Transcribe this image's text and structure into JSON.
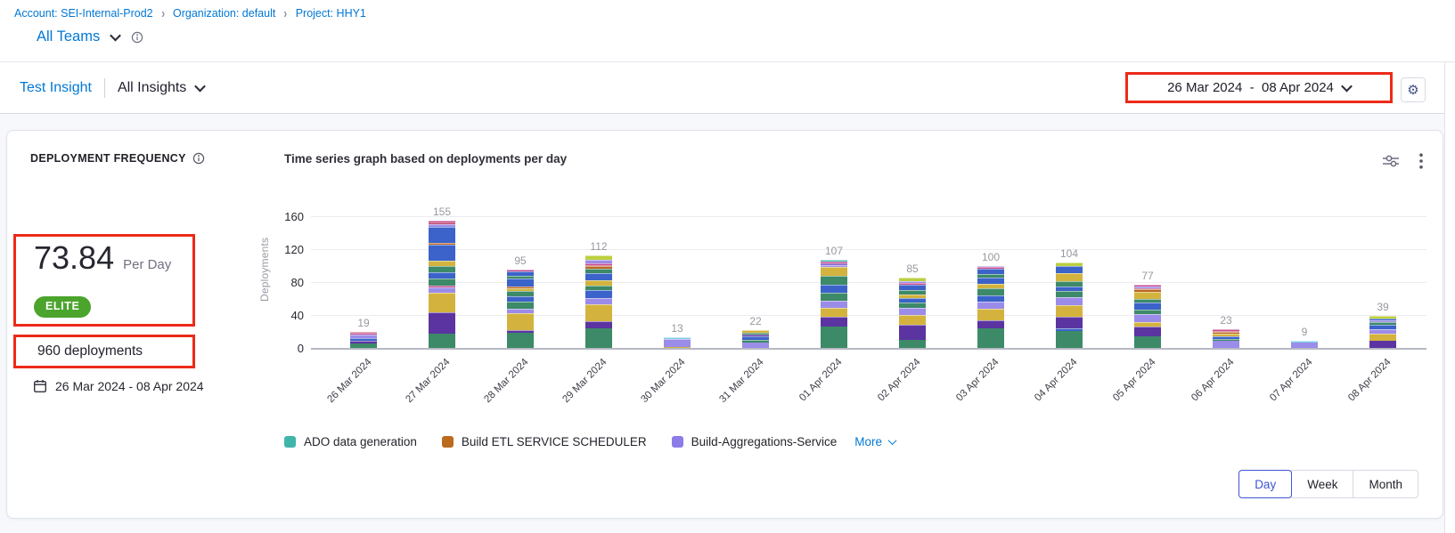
{
  "colors": {
    "accent": "#0278d5",
    "elite_green": "#4ba42c",
    "annotation_red": "#ec2a18",
    "day_selected": "#3d56d5"
  },
  "breadcrumb": {
    "items": [
      "Account: SEI-Internal-Prod2",
      "Organization: default",
      "Project: HHY1"
    ]
  },
  "team_selector": {
    "label": "All Teams"
  },
  "insight_header": {
    "insight_name": "Test Insight",
    "scope_label": "All Insights"
  },
  "date_range_picker": {
    "label": "26 Mar 2024  -  08 Apr 2024"
  },
  "widget": {
    "title": "DEPLOYMENT FREQUENCY",
    "chart_title": "Time series graph based on deployments per day",
    "metric_value": "73.84",
    "metric_unit": "Per Day",
    "badge": "ELITE",
    "total_label": "960 deployments",
    "date_range": "26 Mar 2024 - 08 Apr 2024",
    "granularity": {
      "options": [
        "Day",
        "Week",
        "Month"
      ],
      "selected": "Day"
    }
  },
  "chart_data": {
    "type": "bar",
    "stacked": true,
    "title": "Time series graph based on deployments per day",
    "xlabel": "",
    "ylabel": "Deployments",
    "ylim": [
      0,
      160
    ],
    "yticks": [
      0,
      40,
      80,
      120,
      160
    ],
    "grid": true,
    "legend_position": "bottom",
    "categories": [
      "26 Mar 2024",
      "27 Mar 2024",
      "28 Mar 2024",
      "29 Mar 2024",
      "30 Mar 2024",
      "31 Mar 2024",
      "01 Apr 2024",
      "02 Apr 2024",
      "03 Apr 2024",
      "04 Apr 2024",
      "05 Apr 2024",
      "06 Apr 2024",
      "07 Apr 2024",
      "08 Apr 2024"
    ],
    "totals": [
      19,
      155,
      95,
      112,
      13,
      22,
      107,
      85,
      100,
      104,
      77,
      23,
      9,
      39
    ],
    "legend": [
      {
        "label": "ADO data generation",
        "color": "#3fb5ab"
      },
      {
        "label": "Build ETL SERVICE SCHEDULER",
        "color": "#bc6a1e"
      },
      {
        "label": "Build-Aggregations-Service",
        "color": "#8b7ce8"
      }
    ],
    "more_label": "More",
    "palette": {
      "green": "#3d8a68",
      "darkpurple": "#5b34a1",
      "gold": "#d3b33e",
      "lavender": "#9c8ce9",
      "blue": "#3b63c9",
      "orange": "#bd6524",
      "pink": "#c4488f",
      "crimson": "#bd3f5e",
      "teal": "#49b8ae",
      "lightblue": "#7fd0e8",
      "yellowgreen": "#bccf3f",
      "medpurple": "#7e5bd1"
    },
    "bars": [
      {
        "date": "26 Mar 2024",
        "total": 19,
        "segments": [
          [
            "green",
            5
          ],
          [
            "darkpurple",
            4
          ],
          [
            "blue",
            3
          ],
          [
            "lavender",
            4
          ],
          [
            "pink",
            2
          ],
          [
            "crimson",
            1
          ]
        ]
      },
      {
        "date": "27 Mar 2024",
        "total": 155,
        "segments": [
          [
            "green",
            17
          ],
          [
            "darkpurple",
            26
          ],
          [
            "gold",
            24
          ],
          [
            "lavender",
            7
          ],
          [
            "pink",
            2
          ],
          [
            "green",
            8
          ],
          [
            "blue",
            8
          ],
          [
            "green",
            7
          ],
          [
            "gold",
            7
          ],
          [
            "blue",
            19
          ],
          [
            "orange",
            3
          ],
          [
            "blue",
            19
          ],
          [
            "lavender",
            3
          ],
          [
            "crimson",
            3
          ],
          [
            "pink",
            2
          ]
        ]
      },
      {
        "date": "28 Mar 2024",
        "total": 95,
        "segments": [
          [
            "green",
            18
          ],
          [
            "darkpurple",
            4
          ],
          [
            "gold",
            20
          ],
          [
            "lavender",
            6
          ],
          [
            "green",
            8
          ],
          [
            "blue",
            7
          ],
          [
            "green",
            6
          ],
          [
            "gold",
            4
          ],
          [
            "orange",
            2
          ],
          [
            "blue",
            9
          ],
          [
            "green",
            4
          ],
          [
            "blue",
            5
          ],
          [
            "pink",
            2
          ]
        ]
      },
      {
        "date": "29 Mar 2024",
        "total": 112,
        "segments": [
          [
            "green",
            24
          ],
          [
            "darkpurple",
            8
          ],
          [
            "gold",
            21
          ],
          [
            "lavender",
            8
          ],
          [
            "blue",
            9
          ],
          [
            "green",
            6
          ],
          [
            "gold",
            6
          ],
          [
            "blue",
            9
          ],
          [
            "green",
            5
          ],
          [
            "orange",
            3
          ],
          [
            "crimson",
            2
          ],
          [
            "pink",
            2
          ],
          [
            "lavender",
            4
          ],
          [
            "yellowgreen",
            5
          ]
        ]
      },
      {
        "date": "30 Mar 2024",
        "total": 13,
        "segments": [
          [
            "gold",
            1
          ],
          [
            "lavender",
            10
          ],
          [
            "lightblue",
            2
          ]
        ]
      },
      {
        "date": "31 Mar 2024",
        "total": 22,
        "segments": [
          [
            "lavender",
            7
          ],
          [
            "green",
            3
          ],
          [
            "blue",
            4
          ],
          [
            "darkpurple",
            2
          ],
          [
            "green",
            2
          ],
          [
            "gold",
            4
          ]
        ]
      },
      {
        "date": "01 Apr 2024",
        "total": 107,
        "segments": [
          [
            "green",
            26
          ],
          [
            "darkpurple",
            12
          ],
          [
            "gold",
            11
          ],
          [
            "lavender",
            8
          ],
          [
            "green",
            10
          ],
          [
            "blue",
            10
          ],
          [
            "green",
            11
          ],
          [
            "gold",
            10
          ],
          [
            "lavender",
            3
          ],
          [
            "medpurple",
            2
          ],
          [
            "pink",
            2
          ],
          [
            "teal",
            2
          ]
        ]
      },
      {
        "date": "02 Apr 2024",
        "total": 85,
        "segments": [
          [
            "green",
            10
          ],
          [
            "darkpurple",
            18
          ],
          [
            "gold",
            12
          ],
          [
            "lavender",
            9
          ],
          [
            "green",
            6
          ],
          [
            "blue",
            6
          ],
          [
            "gold",
            4
          ],
          [
            "green",
            5
          ],
          [
            "blue",
            7
          ],
          [
            "pink",
            2
          ],
          [
            "lavender",
            2
          ],
          [
            "yellowgreen",
            4
          ]
        ]
      },
      {
        "date": "03 Apr 2024",
        "total": 100,
        "segments": [
          [
            "green",
            24
          ],
          [
            "darkpurple",
            10
          ],
          [
            "gold",
            14
          ],
          [
            "lavender",
            8
          ],
          [
            "blue",
            8
          ],
          [
            "green",
            8
          ],
          [
            "gold",
            6
          ],
          [
            "blue",
            8
          ],
          [
            "green",
            4
          ],
          [
            "blue",
            6
          ],
          [
            "pink",
            2
          ],
          [
            "lavender",
            2
          ]
        ]
      },
      {
        "date": "04 Apr 2024",
        "total": 104,
        "segments": [
          [
            "green",
            20
          ],
          [
            "blue",
            4
          ],
          [
            "darkpurple",
            14
          ],
          [
            "gold",
            14
          ],
          [
            "lavender",
            10
          ],
          [
            "green",
            7
          ],
          [
            "blue",
            6
          ],
          [
            "green",
            6
          ],
          [
            "gold",
            10
          ],
          [
            "blue",
            9
          ],
          [
            "yellowgreen",
            4
          ]
        ]
      },
      {
        "date": "05 Apr 2024",
        "total": 77,
        "segments": [
          [
            "green",
            14
          ],
          [
            "darkpurple",
            12
          ],
          [
            "gold",
            5
          ],
          [
            "lavender",
            10
          ],
          [
            "green",
            6
          ],
          [
            "blue",
            8
          ],
          [
            "green",
            5
          ],
          [
            "gold",
            8
          ],
          [
            "orange",
            3
          ],
          [
            "crimson",
            2
          ],
          [
            "lavender",
            2
          ],
          [
            "pink",
            2
          ]
        ]
      },
      {
        "date": "06 Apr 2024",
        "total": 23,
        "segments": [
          [
            "lavender",
            9
          ],
          [
            "green",
            2
          ],
          [
            "blue",
            3
          ],
          [
            "gold",
            3
          ],
          [
            "orange",
            2
          ],
          [
            "crimson",
            2
          ],
          [
            "pink",
            2
          ]
        ]
      },
      {
        "date": "07 Apr 2024",
        "total": 9,
        "segments": [
          [
            "lavender",
            7
          ],
          [
            "lightblue",
            2
          ]
        ]
      },
      {
        "date": "08 Apr 2024",
        "total": 39,
        "segments": [
          [
            "darkpurple",
            9
          ],
          [
            "gold",
            8
          ],
          [
            "lavender",
            6
          ],
          [
            "blue",
            5
          ],
          [
            "green",
            3
          ],
          [
            "lavender",
            3
          ],
          [
            "blue",
            2
          ],
          [
            "yellowgreen",
            3
          ]
        ]
      }
    ]
  }
}
